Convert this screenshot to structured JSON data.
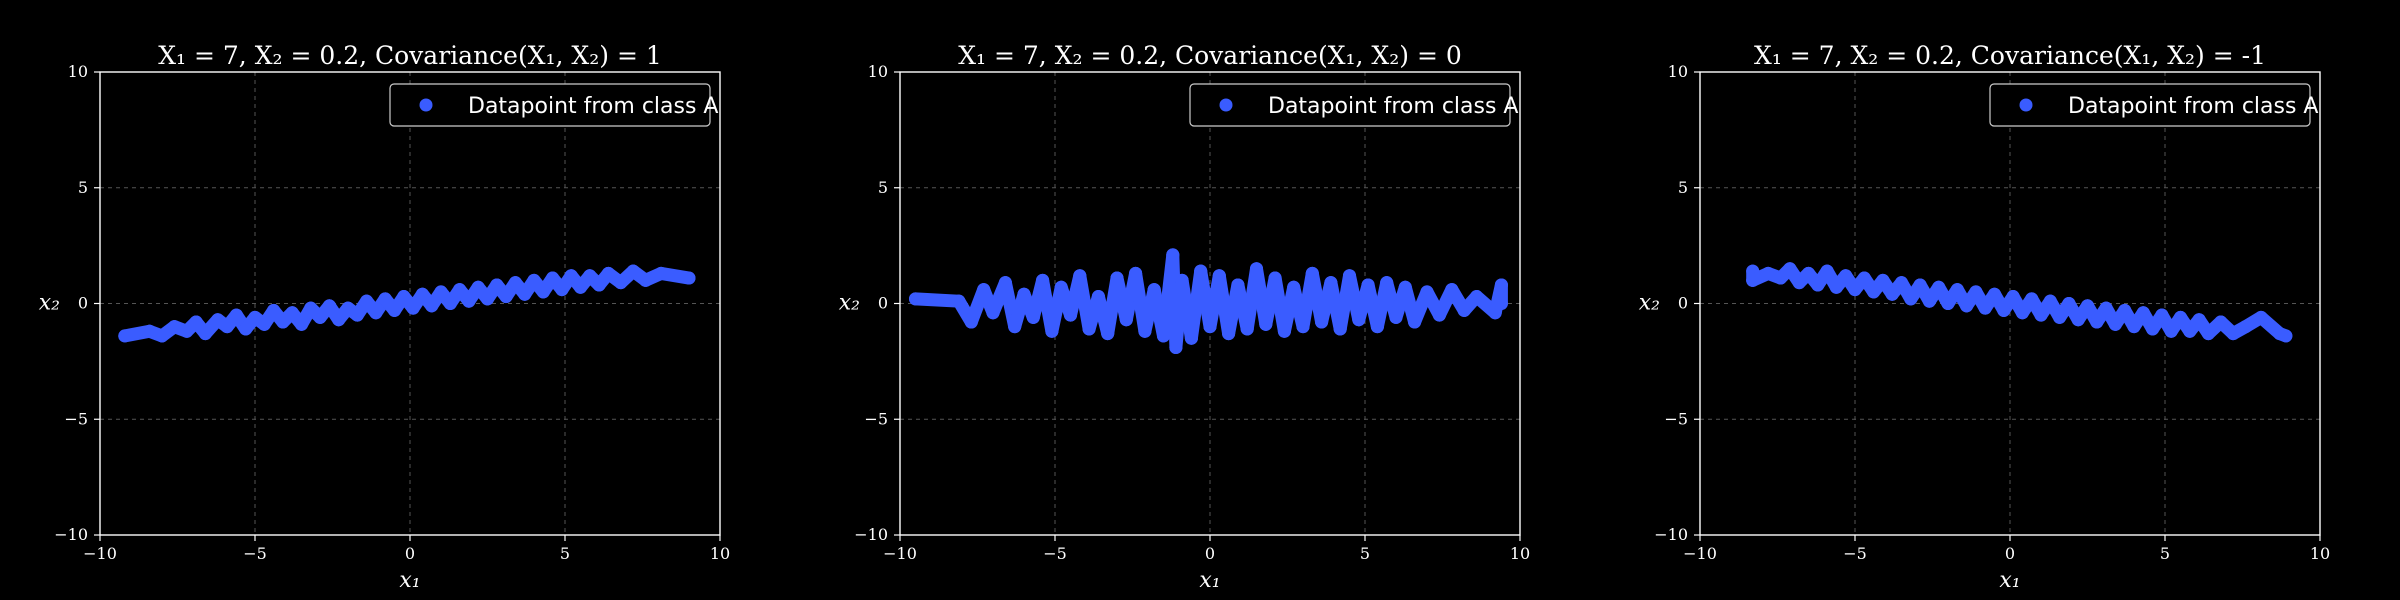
{
  "chart_data": [
    {
      "type": "scatter",
      "title": "X₁ = 7, X₂ = 0.2, Covariance(X₁, X₂) = 1",
      "xlabel": "x₁",
      "ylabel": "x₂",
      "xlim": [
        -10,
        10
      ],
      "ylim": [
        -10,
        10
      ],
      "xticks": [
        "−10",
        "−5",
        "0",
        "5",
        "10"
      ],
      "yticks": [
        "−10",
        "−5",
        "0",
        "5",
        "10"
      ],
      "grid": true,
      "legend_position": "top-right",
      "series": [
        {
          "name": "Datapoint from class A",
          "color": "#3a5cff",
          "points": [
            [
              -9.2,
              -1.4
            ],
            [
              -8.4,
              -1.2
            ],
            [
              -8.0,
              -1.4
            ],
            [
              -7.6,
              -1.0
            ],
            [
              -7.2,
              -1.2
            ],
            [
              -6.9,
              -0.8
            ],
            [
              -6.6,
              -1.3
            ],
            [
              -6.2,
              -0.7
            ],
            [
              -5.9,
              -1.0
            ],
            [
              -5.6,
              -0.5
            ],
            [
              -5.3,
              -1.1
            ],
            [
              -5.0,
              -0.6
            ],
            [
              -4.7,
              -0.9
            ],
            [
              -4.4,
              -0.3
            ],
            [
              -4.1,
              -0.8
            ],
            [
              -3.8,
              -0.4
            ],
            [
              -3.5,
              -0.9
            ],
            [
              -3.2,
              -0.2
            ],
            [
              -2.9,
              -0.6
            ],
            [
              -2.6,
              -0.1
            ],
            [
              -2.3,
              -0.7
            ],
            [
              -2.0,
              -0.2
            ],
            [
              -1.7,
              -0.5
            ],
            [
              -1.4,
              0.1
            ],
            [
              -1.1,
              -0.4
            ],
            [
              -0.8,
              0.2
            ],
            [
              -0.5,
              -0.3
            ],
            [
              -0.2,
              0.3
            ],
            [
              0.1,
              -0.2
            ],
            [
              0.4,
              0.4
            ],
            [
              0.7,
              -0.1
            ],
            [
              1.0,
              0.5
            ],
            [
              1.3,
              0.0
            ],
            [
              1.6,
              0.6
            ],
            [
              1.9,
              0.1
            ],
            [
              2.2,
              0.7
            ],
            [
              2.5,
              0.2
            ],
            [
              2.8,
              0.8
            ],
            [
              3.1,
              0.3
            ],
            [
              3.4,
              0.9
            ],
            [
              3.7,
              0.4
            ],
            [
              4.0,
              1.0
            ],
            [
              4.3,
              0.5
            ],
            [
              4.6,
              1.1
            ],
            [
              4.9,
              0.6
            ],
            [
              5.2,
              1.2
            ],
            [
              5.5,
              0.7
            ],
            [
              5.8,
              1.2
            ],
            [
              6.1,
              0.8
            ],
            [
              6.4,
              1.3
            ],
            [
              6.8,
              0.9
            ],
            [
              7.2,
              1.4
            ],
            [
              7.6,
              1.0
            ],
            [
              8.1,
              1.3
            ],
            [
              9.0,
              1.1
            ]
          ]
        }
      ]
    },
    {
      "type": "scatter",
      "title": "X₁ = 7, X₂ = 0.2, Covariance(X₁, X₂) = 0",
      "xlabel": "x₁",
      "ylabel": "x₂",
      "xlim": [
        -10,
        10
      ],
      "ylim": [
        -10,
        10
      ],
      "xticks": [
        "−10",
        "−5",
        "0",
        "5",
        "10"
      ],
      "yticks": [
        "−10",
        "−5",
        "0",
        "5",
        "10"
      ],
      "grid": true,
      "legend_position": "top-right",
      "series": [
        {
          "name": "Datapoint from class A",
          "color": "#3a5cff",
          "points": [
            [
              -9.5,
              0.2
            ],
            [
              -8.1,
              0.1
            ],
            [
              -7.7,
              -0.8
            ],
            [
              -7.3,
              0.6
            ],
            [
              -7.0,
              -0.4
            ],
            [
              -6.6,
              0.9
            ],
            [
              -6.3,
              -1.0
            ],
            [
              -6.0,
              0.4
            ],
            [
              -5.7,
              -0.6
            ],
            [
              -5.4,
              1.0
            ],
            [
              -5.1,
              -1.2
            ],
            [
              -4.8,
              0.7
            ],
            [
              -4.5,
              -0.5
            ],
            [
              -4.2,
              1.2
            ],
            [
              -3.9,
              -1.1
            ],
            [
              -3.6,
              0.3
            ],
            [
              -3.3,
              -1.3
            ],
            [
              -3.0,
              1.1
            ],
            [
              -2.7,
              -0.7
            ],
            [
              -2.4,
              1.3
            ],
            [
              -2.1,
              -1.2
            ],
            [
              -1.8,
              0.6
            ],
            [
              -1.5,
              -1.4
            ],
            [
              -1.2,
              2.1
            ],
            [
              -1.1,
              -1.9
            ],
            [
              -0.9,
              1.0
            ],
            [
              -0.6,
              -1.5
            ],
            [
              -0.3,
              1.4
            ],
            [
              0.0,
              -1.0
            ],
            [
              0.3,
              1.2
            ],
            [
              0.6,
              -1.3
            ],
            [
              0.9,
              0.8
            ],
            [
              1.2,
              -1.1
            ],
            [
              1.5,
              1.5
            ],
            [
              1.8,
              -0.9
            ],
            [
              2.1,
              1.1
            ],
            [
              2.4,
              -1.2
            ],
            [
              2.7,
              0.7
            ],
            [
              3.0,
              -1.0
            ],
            [
              3.3,
              1.3
            ],
            [
              3.6,
              -0.8
            ],
            [
              3.9,
              0.9
            ],
            [
              4.2,
              -1.1
            ],
            [
              4.5,
              1.2
            ],
            [
              4.8,
              -0.7
            ],
            [
              5.1,
              0.8
            ],
            [
              5.4,
              -1.0
            ],
            [
              5.7,
              0.9
            ],
            [
              6.0,
              -0.6
            ],
            [
              6.3,
              0.7
            ],
            [
              6.6,
              -0.8
            ],
            [
              7.0,
              0.5
            ],
            [
              7.4,
              -0.5
            ],
            [
              7.8,
              0.6
            ],
            [
              8.2,
              -0.3
            ],
            [
              8.6,
              0.3
            ],
            [
              9.2,
              -0.4
            ],
            [
              9.4,
              0.8
            ],
            [
              9.4,
              0.0
            ]
          ]
        }
      ]
    },
    {
      "type": "scatter",
      "title": "X₁ = 7, X₂ = 0.2, Covariance(X₁, X₂) = -1",
      "xlabel": "x₁",
      "ylabel": "x₂",
      "xlim": [
        -10,
        10
      ],
      "ylim": [
        -10,
        10
      ],
      "xticks": [
        "−10",
        "−5",
        "0",
        "5",
        "10"
      ],
      "yticks": [
        "−10",
        "−5",
        "0",
        "5",
        "10"
      ],
      "grid": true,
      "legend_position": "top-right",
      "series": [
        {
          "name": "Datapoint from class A",
          "color": "#3a5cff",
          "points": [
            [
              -8.3,
              1.4
            ],
            [
              -8.3,
              1.0
            ],
            [
              -7.8,
              1.3
            ],
            [
              -7.4,
              1.1
            ],
            [
              -7.1,
              1.5
            ],
            [
              -6.8,
              0.9
            ],
            [
              -6.5,
              1.3
            ],
            [
              -6.2,
              0.8
            ],
            [
              -5.9,
              1.4
            ],
            [
              -5.6,
              0.7
            ],
            [
              -5.3,
              1.2
            ],
            [
              -5.0,
              0.6
            ],
            [
              -4.7,
              1.1
            ],
            [
              -4.4,
              0.5
            ],
            [
              -4.1,
              1.0
            ],
            [
              -3.8,
              0.4
            ],
            [
              -3.5,
              0.9
            ],
            [
              -3.2,
              0.2
            ],
            [
              -2.9,
              0.8
            ],
            [
              -2.6,
              0.1
            ],
            [
              -2.3,
              0.7
            ],
            [
              -2.0,
              0.0
            ],
            [
              -1.7,
              0.6
            ],
            [
              -1.4,
              -0.1
            ],
            [
              -1.1,
              0.5
            ],
            [
              -0.8,
              -0.2
            ],
            [
              -0.5,
              0.4
            ],
            [
              -0.2,
              -0.3
            ],
            [
              0.1,
              0.3
            ],
            [
              0.4,
              -0.4
            ],
            [
              0.7,
              0.2
            ],
            [
              1.0,
              -0.5
            ],
            [
              1.3,
              0.1
            ],
            [
              1.6,
              -0.6
            ],
            [
              1.9,
              0.0
            ],
            [
              2.2,
              -0.7
            ],
            [
              2.5,
              -0.1
            ],
            [
              2.8,
              -0.8
            ],
            [
              3.1,
              -0.2
            ],
            [
              3.4,
              -0.9
            ],
            [
              3.7,
              -0.3
            ],
            [
              4.0,
              -1.0
            ],
            [
              4.3,
              -0.4
            ],
            [
              4.6,
              -1.1
            ],
            [
              4.9,
              -0.5
            ],
            [
              5.2,
              -1.2
            ],
            [
              5.5,
              -0.6
            ],
            [
              5.8,
              -1.2
            ],
            [
              6.1,
              -0.7
            ],
            [
              6.4,
              -1.3
            ],
            [
              6.8,
              -0.8
            ],
            [
              7.2,
              -1.3
            ],
            [
              7.6,
              -1.0
            ],
            [
              8.1,
              -0.6
            ],
            [
              8.7,
              -1.3
            ],
            [
              8.9,
              -1.4
            ]
          ]
        }
      ]
    }
  ]
}
